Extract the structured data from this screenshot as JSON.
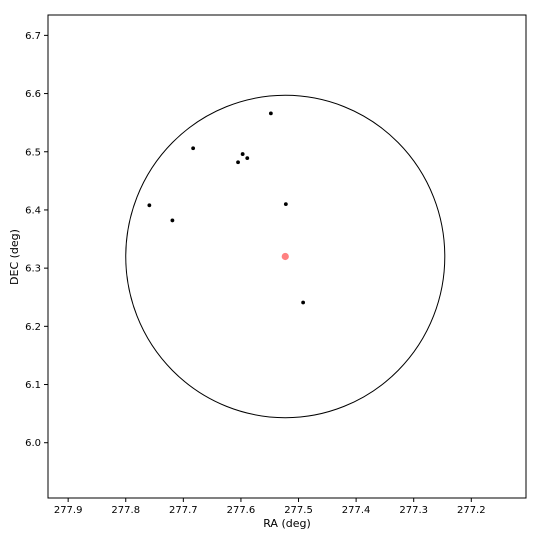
{
  "chart_data": {
    "type": "scatter",
    "title": "",
    "xlabel": "RA (deg)",
    "ylabel": "DEC (deg)",
    "xlim": [
      277.935,
      277.105
    ],
    "ylim": [
      5.905,
      6.735
    ],
    "x_ticks": [
      277.9,
      277.8,
      277.7,
      277.6,
      277.5,
      277.4,
      277.3,
      277.2
    ],
    "x_tick_labels": [
      "277.9",
      "277.8",
      "277.7",
      "277.6",
      "277.5",
      "277.4",
      "277.3",
      "277.2"
    ],
    "y_ticks": [
      6.0,
      6.1,
      6.2,
      6.3,
      6.4,
      6.5,
      6.6,
      6.7
    ],
    "y_tick_labels": [
      "6.0",
      "6.1",
      "6.2",
      "6.3",
      "6.4",
      "6.5",
      "6.6",
      "6.7"
    ],
    "grid": false,
    "series": [
      {
        "name": "sources",
        "color": "#000000",
        "points": [
          {
            "x": 277.548,
            "y": 6.566
          },
          {
            "x": 277.683,
            "y": 6.506
          },
          {
            "x": 277.597,
            "y": 6.496
          },
          {
            "x": 277.589,
            "y": 6.489
          },
          {
            "x": 277.605,
            "y": 6.482
          },
          {
            "x": 277.759,
            "y": 6.408
          },
          {
            "x": 277.522,
            "y": 6.41
          },
          {
            "x": 277.719,
            "y": 6.382
          },
          {
            "x": 277.492,
            "y": 6.241
          }
        ]
      },
      {
        "name": "center",
        "color": "#ff6b6b",
        "points": [
          {
            "x": 277.523,
            "y": 6.32
          }
        ]
      }
    ],
    "circle": {
      "center_x": 277.523,
      "center_y": 6.32,
      "radius": 0.277,
      "color": "#000000"
    }
  }
}
